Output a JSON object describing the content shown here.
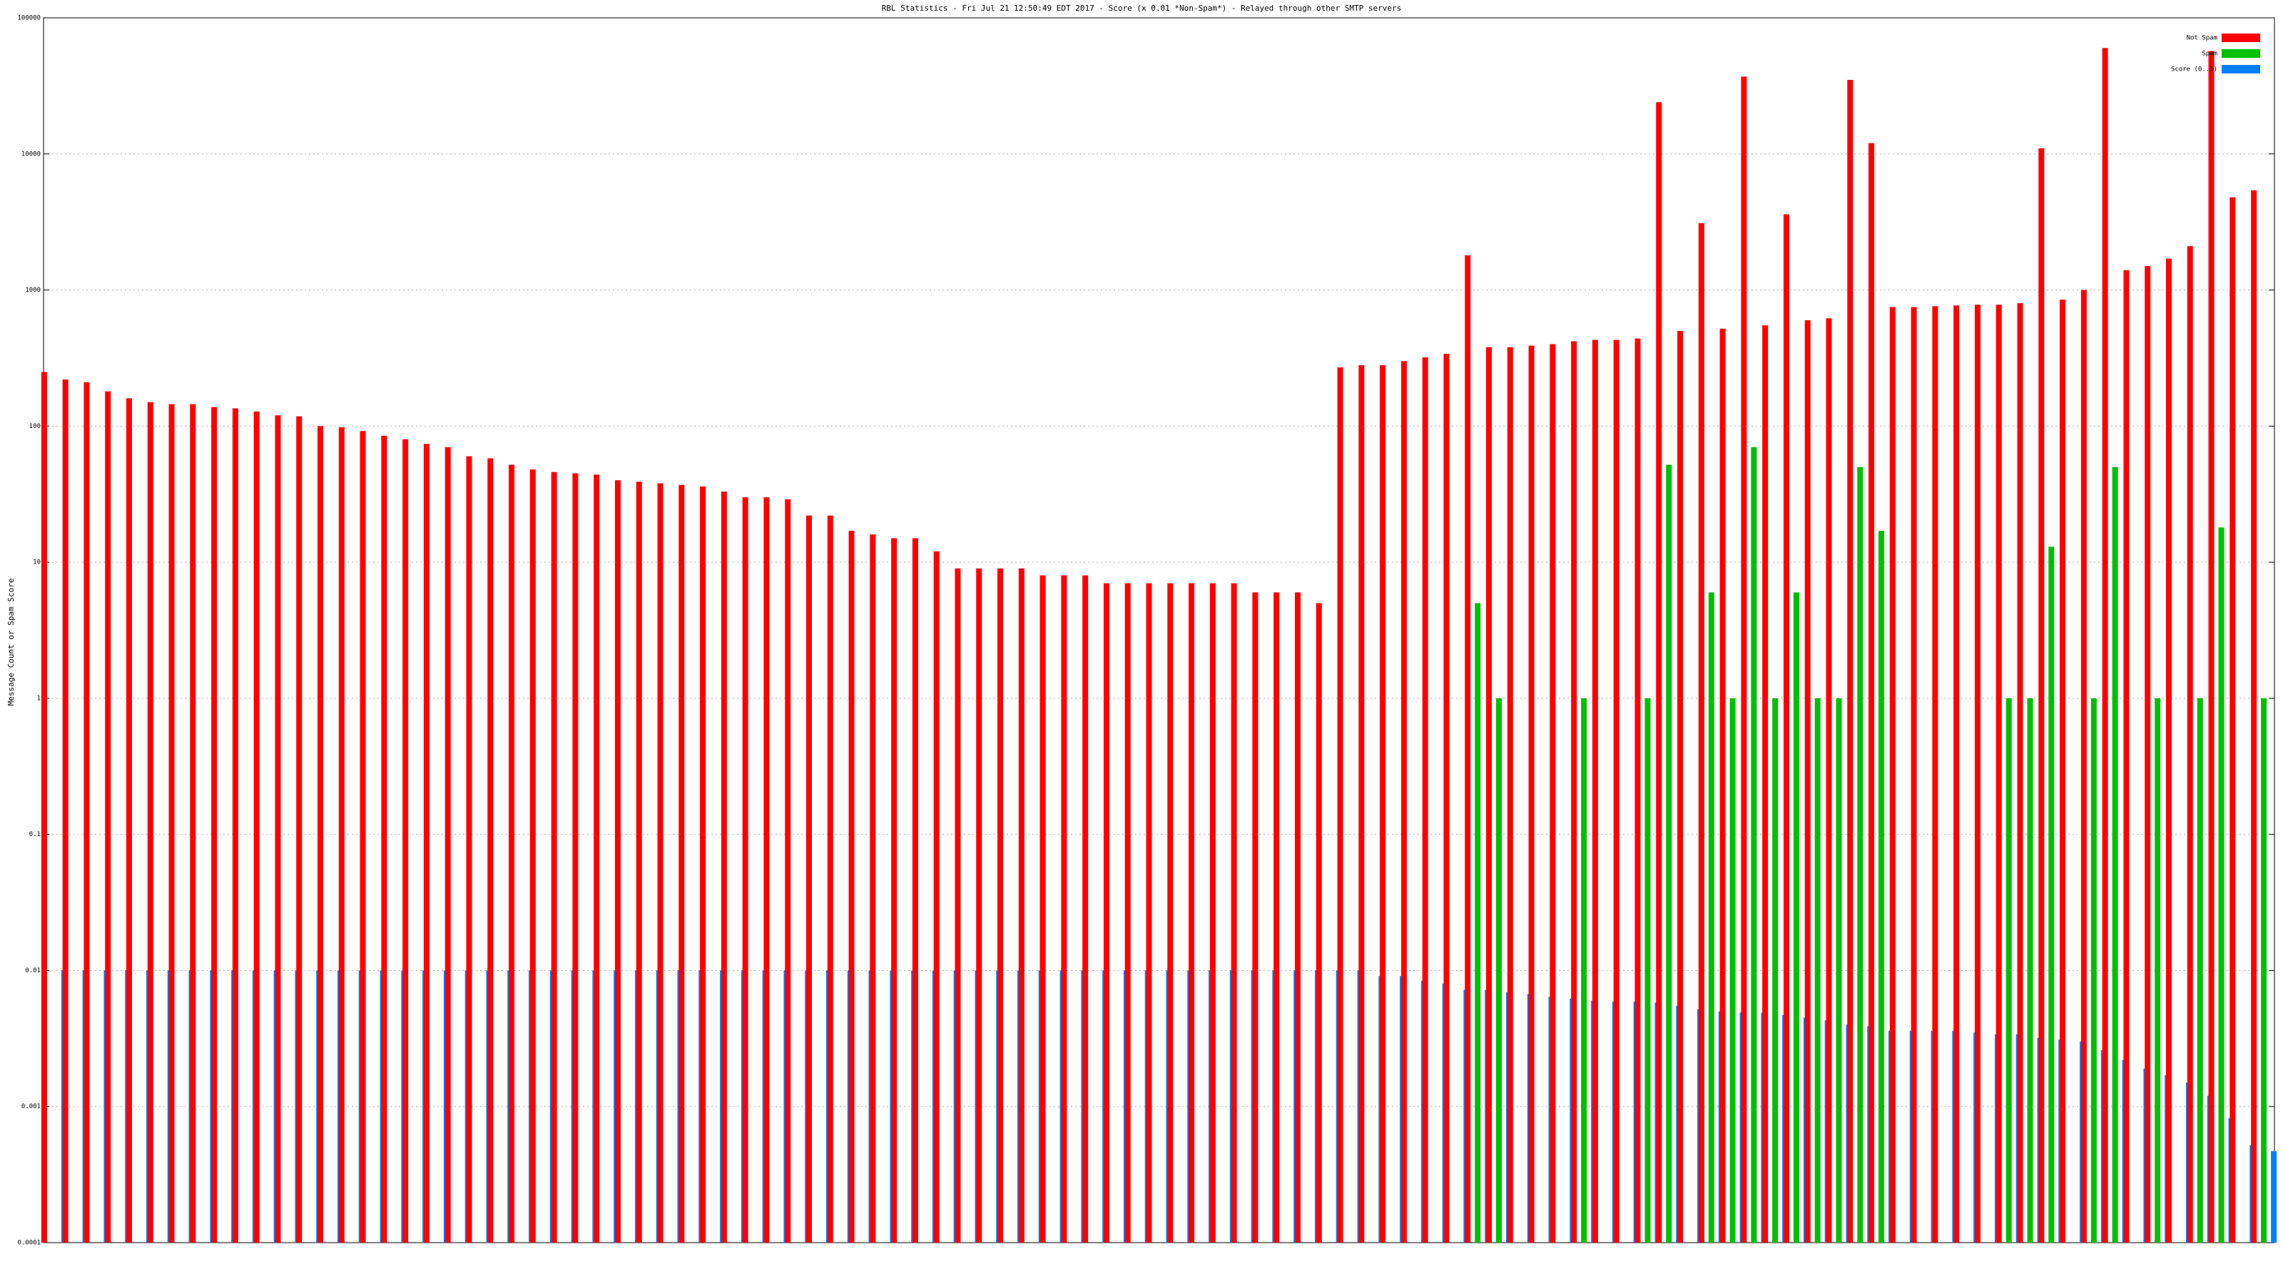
{
  "chart_data": {
    "type": "bar",
    "title": "RBL Statistics - Fri Jul 21 12:50:49 EDT 2017 - Score (x 0.01 *Non-Spam*) - Relayed through other SMTP servers",
    "y_label": "Message Count or Spam Score",
    "log_y": true,
    "grid": true,
    "legend": "upper right",
    "ylim": [
      0.0001,
      100000
    ],
    "yticks": [
      0.0001,
      0.001,
      0.01,
      0.1,
      1,
      10,
      100,
      1000,
      10000,
      100000
    ],
    "categories": [
      null,
      null,
      null,
      null,
      null,
      null,
      null,
      null,
      null,
      null,
      null,
      null,
      null,
      null,
      null,
      null,
      null,
      null,
      null,
      null,
      null,
      null,
      null,
      null,
      null,
      null,
      null,
      null,
      null,
      null,
      null,
      null,
      null,
      null,
      null,
      null,
      null,
      null,
      null,
      null,
      null,
      null,
      null,
      null,
      null,
      null,
      null,
      null,
      null,
      null,
      null,
      null,
      null,
      null,
      null,
      null,
      null,
      null,
      null,
      null,
      null,
      null,
      null,
      null,
      null,
      null,
      null,
      null,
      null,
      null,
      null,
      null,
      null,
      null,
      null,
      null,
      null,
      null,
      null,
      null,
      null,
      null,
      null,
      null,
      null,
      null,
      null,
      null,
      null,
      null,
      null,
      null,
      null,
      null,
      null,
      null,
      null,
      null,
      null,
      null,
      null,
      null,
      null,
      null,
      null
    ],
    "series": [
      {
        "name": "Not Spam",
        "color": "#ff0000",
        "values": [
          250,
          220,
          210,
          180,
          160,
          150,
          145,
          145,
          138,
          135,
          128,
          120,
          118,
          100,
          98,
          92,
          85,
          80,
          74,
          70,
          60,
          58,
          52,
          48,
          46,
          45,
          44,
          40,
          39,
          38,
          37,
          36,
          33,
          30,
          30,
          29,
          22,
          22,
          17,
          16,
          15,
          15,
          12,
          9,
          9,
          9,
          9,
          8,
          8,
          8,
          7,
          7,
          7,
          7,
          7,
          7,
          7,
          6,
          6,
          6,
          5,
          270,
          280,
          280,
          300,
          320,
          340,
          1800,
          380,
          380,
          390,
          400,
          420,
          430,
          430,
          440,
          24000,
          500,
          3100,
          520,
          37000,
          550,
          3600,
          600,
          620,
          35000,
          12000,
          750,
          750,
          760,
          770,
          780,
          780,
          800,
          11000,
          850,
          1000,
          60000,
          1400,
          1500,
          1700,
          2100,
          57000,
          4800,
          5400
        ]
      },
      {
        "name": "Spam",
        "color": "#00c000",
        "values": [
          null,
          null,
          null,
          null,
          null,
          null,
          null,
          null,
          null,
          null,
          null,
          null,
          null,
          null,
          null,
          null,
          null,
          null,
          null,
          null,
          null,
          null,
          null,
          null,
          null,
          null,
          null,
          null,
          null,
          null,
          null,
          null,
          null,
          null,
          null,
          null,
          null,
          null,
          null,
          null,
          null,
          null,
          null,
          null,
          null,
          null,
          null,
          null,
          null,
          null,
          null,
          null,
          null,
          null,
          null,
          null,
          null,
          null,
          null,
          null,
          null,
          null,
          null,
          null,
          null,
          null,
          null,
          5,
          1,
          null,
          null,
          null,
          1,
          null,
          null,
          1,
          52,
          null,
          6,
          1,
          70,
          1,
          6,
          1,
          1,
          50,
          17,
          null,
          null,
          null,
          null,
          null,
          1,
          1,
          13,
          null,
          1,
          50,
          null,
          1,
          null,
          1,
          18,
          null,
          1
        ]
      },
      {
        "name": "Score (0..1)",
        "color": "#0080ff",
        "values": [
          0.01,
          0.01,
          0.01,
          0.01,
          0.01,
          0.01,
          0.01,
          0.01,
          0.01,
          0.01,
          0.01,
          0.01,
          0.01,
          0.01,
          0.01,
          0.01,
          0.01,
          0.01,
          0.01,
          0.01,
          0.01,
          0.01,
          0.01,
          0.01,
          0.01,
          0.01,
          0.01,
          0.01,
          0.01,
          0.01,
          0.01,
          0.01,
          0.01,
          0.01,
          0.01,
          0.01,
          0.01,
          0.01,
          0.01,
          0.01,
          0.01,
          0.01,
          0.01,
          0.01,
          0.01,
          0.01,
          0.01,
          0.01,
          0.01,
          0.01,
          0.01,
          0.01,
          0.01,
          0.01,
          0.01,
          0.01,
          0.01,
          0.01,
          0.01,
          0.01,
          0.01,
          0.01,
          0.0091,
          0.0091,
          0.0084,
          0.008,
          0.0072,
          0.0072,
          0.0069,
          0.0067,
          0.0064,
          0.0062,
          0.006,
          0.0059,
          0.0059,
          0.0058,
          0.0055,
          0.0052,
          0.005,
          0.0049,
          0.0049,
          0.0047,
          0.0045,
          0.0043,
          0.004,
          0.0039,
          0.0036,
          0.0036,
          0.0036,
          0.0036,
          0.0035,
          0.0034,
          0.0034,
          0.0032,
          0.0031,
          0.003,
          0.0026,
          0.0022,
          0.0019,
          0.0017,
          0.0015,
          0.0012,
          0.00082,
          0.00052,
          0.00047
        ]
      }
    ]
  }
}
